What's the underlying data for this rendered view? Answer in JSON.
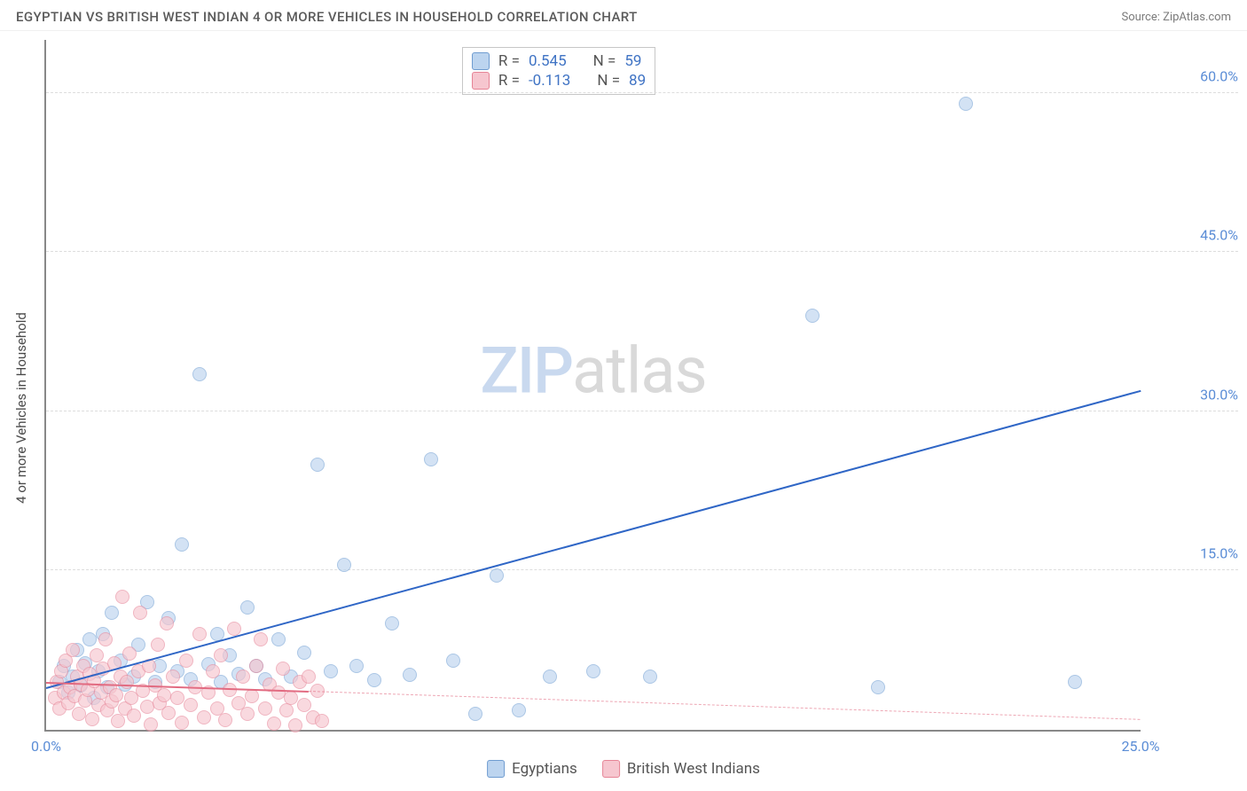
{
  "header": {
    "title": "EGYPTIAN VS BRITISH WEST INDIAN 4 OR MORE VEHICLES IN HOUSEHOLD CORRELATION CHART",
    "source": "Source: ZipAtlas.com"
  },
  "watermark": {
    "part1": "ZIP",
    "part2": "atlas"
  },
  "chart": {
    "type": "scatter",
    "ylabel": "4 or more Vehicles in Household",
    "background_color": "#ffffff",
    "grid_color": "#dddddd",
    "axis_color": "#888888",
    "xlim": [
      0,
      25
    ],
    "ylim": [
      0,
      65
    ],
    "xticks": [
      {
        "v": 0,
        "label": "0.0%"
      },
      {
        "v": 25,
        "label": "25.0%"
      }
    ],
    "yticks": [
      {
        "v": 15,
        "label": "15.0%"
      },
      {
        "v": 30,
        "label": "30.0%"
      },
      {
        "v": 45,
        "label": "45.0%"
      },
      {
        "v": 60,
        "label": "60.0%"
      }
    ],
    "series": [
      {
        "id": "egyptians",
        "label": "Egyptians",
        "marker_fill": "#bcd4ef",
        "marker_stroke": "#7fa9d8",
        "swatch_fill": "#bcd4ef",
        "swatch_stroke": "#6f9cd0",
        "R": "0.545",
        "N": "59",
        "value_color": "#3f73c4",
        "trend": {
          "x1": 0,
          "y1": 4.0,
          "x2": 25,
          "y2": 32.0,
          "solid_until_x": 25,
          "color": "#2f66c6"
        },
        "points": [
          [
            0.3,
            4.5
          ],
          [
            0.4,
            6
          ],
          [
            0.5,
            3.5
          ],
          [
            0.6,
            5
          ],
          [
            0.7,
            7.5
          ],
          [
            0.8,
            4.2
          ],
          [
            0.9,
            6.3
          ],
          [
            1.0,
            8.5
          ],
          [
            1.1,
            3.0
          ],
          [
            1.2,
            5.5
          ],
          [
            1.3,
            9.0
          ],
          [
            1.4,
            4.0
          ],
          [
            1.5,
            11.0
          ],
          [
            1.7,
            6.5
          ],
          [
            1.8,
            4.3
          ],
          [
            2.0,
            5.0
          ],
          [
            2.1,
            8.0
          ],
          [
            2.3,
            12.0
          ],
          [
            2.5,
            4.5
          ],
          [
            2.6,
            6.0
          ],
          [
            2.8,
            10.5
          ],
          [
            3.0,
            5.5
          ],
          [
            3.1,
            17.5
          ],
          [
            3.3,
            4.8
          ],
          [
            3.5,
            33.5
          ],
          [
            3.7,
            6.2
          ],
          [
            3.9,
            9.0
          ],
          [
            4.0,
            4.5
          ],
          [
            4.2,
            7.0
          ],
          [
            4.4,
            5.3
          ],
          [
            4.6,
            11.5
          ],
          [
            4.8,
            6.0
          ],
          [
            5.0,
            4.8
          ],
          [
            5.3,
            8.5
          ],
          [
            5.6,
            5.0
          ],
          [
            5.9,
            7.3
          ],
          [
            6.2,
            25.0
          ],
          [
            6.5,
            5.5
          ],
          [
            6.8,
            15.5
          ],
          [
            7.1,
            6.0
          ],
          [
            7.5,
            4.7
          ],
          [
            7.9,
            10.0
          ],
          [
            8.3,
            5.2
          ],
          [
            8.8,
            25.5
          ],
          [
            9.3,
            6.5
          ],
          [
            9.8,
            1.5
          ],
          [
            10.3,
            14.5
          ],
          [
            10.8,
            1.8
          ],
          [
            11.5,
            5.0
          ],
          [
            12.5,
            5.5
          ],
          [
            13.8,
            5.0
          ],
          [
            17.5,
            39.0
          ],
          [
            19.0,
            4.0
          ],
          [
            21.0,
            59.0
          ],
          [
            23.5,
            4.5
          ]
        ]
      },
      {
        "id": "bwi",
        "label": "British West Indians",
        "marker_fill": "#f6c6cf",
        "marker_stroke": "#e98fa0",
        "swatch_fill": "#f6c6cf",
        "swatch_stroke": "#e68496",
        "R": "-0.113",
        "N": "89",
        "value_color": "#3f73c4",
        "trend": {
          "x1": 0,
          "y1": 4.5,
          "x2": 25,
          "y2": 1.0,
          "solid_until_x": 6,
          "color": "#e26b81"
        },
        "points": [
          [
            0.2,
            3.0
          ],
          [
            0.25,
            4.5
          ],
          [
            0.3,
            2.0
          ],
          [
            0.35,
            5.5
          ],
          [
            0.4,
            3.5
          ],
          [
            0.45,
            6.5
          ],
          [
            0.5,
            2.5
          ],
          [
            0.55,
            4.0
          ],
          [
            0.6,
            7.5
          ],
          [
            0.65,
            3.2
          ],
          [
            0.7,
            5.0
          ],
          [
            0.75,
            1.5
          ],
          [
            0.8,
            4.3
          ],
          [
            0.85,
            6.0
          ],
          [
            0.9,
            2.8
          ],
          [
            0.95,
            3.8
          ],
          [
            1.0,
            5.3
          ],
          [
            1.05,
            1.0
          ],
          [
            1.1,
            4.6
          ],
          [
            1.15,
            7.0
          ],
          [
            1.2,
            2.3
          ],
          [
            1.25,
            3.5
          ],
          [
            1.3,
            5.8
          ],
          [
            1.35,
            8.5
          ],
          [
            1.4,
            1.8
          ],
          [
            1.45,
            4.0
          ],
          [
            1.5,
            2.7
          ],
          [
            1.55,
            6.3
          ],
          [
            1.6,
            3.3
          ],
          [
            1.65,
            0.8
          ],
          [
            1.7,
            5.0
          ],
          [
            1.75,
            12.5
          ],
          [
            1.8,
            2.0
          ],
          [
            1.85,
            4.5
          ],
          [
            1.9,
            7.2
          ],
          [
            1.95,
            3.0
          ],
          [
            2.0,
            1.3
          ],
          [
            2.1,
            5.5
          ],
          [
            2.15,
            11.0
          ],
          [
            2.2,
            3.7
          ],
          [
            2.3,
            2.2
          ],
          [
            2.35,
            6.0
          ],
          [
            2.4,
            0.5
          ],
          [
            2.5,
            4.2
          ],
          [
            2.55,
            8.0
          ],
          [
            2.6,
            2.5
          ],
          [
            2.7,
            3.3
          ],
          [
            2.75,
            10.0
          ],
          [
            2.8,
            1.6
          ],
          [
            2.9,
            5.0
          ],
          [
            3.0,
            3.0
          ],
          [
            3.1,
            0.7
          ],
          [
            3.2,
            6.5
          ],
          [
            3.3,
            2.3
          ],
          [
            3.4,
            4.0
          ],
          [
            3.5,
            9.0
          ],
          [
            3.6,
            1.2
          ],
          [
            3.7,
            3.5
          ],
          [
            3.8,
            5.5
          ],
          [
            3.9,
            2.0
          ],
          [
            4.0,
            7.0
          ],
          [
            4.1,
            0.9
          ],
          [
            4.2,
            3.8
          ],
          [
            4.3,
            9.5
          ],
          [
            4.4,
            2.5
          ],
          [
            4.5,
            5.0
          ],
          [
            4.6,
            1.5
          ],
          [
            4.7,
            3.2
          ],
          [
            4.8,
            6.0
          ],
          [
            4.9,
            8.5
          ],
          [
            5.0,
            2.0
          ],
          [
            5.1,
            4.3
          ],
          [
            5.2,
            0.6
          ],
          [
            5.3,
            3.5
          ],
          [
            5.4,
            5.8
          ],
          [
            5.5,
            1.8
          ],
          [
            5.6,
            3.0
          ],
          [
            5.7,
            0.4
          ],
          [
            5.8,
            4.5
          ],
          [
            5.9,
            2.3
          ],
          [
            6.0,
            5.0
          ],
          [
            6.1,
            1.2
          ],
          [
            6.2,
            3.7
          ],
          [
            6.3,
            0.8
          ]
        ]
      }
    ]
  }
}
